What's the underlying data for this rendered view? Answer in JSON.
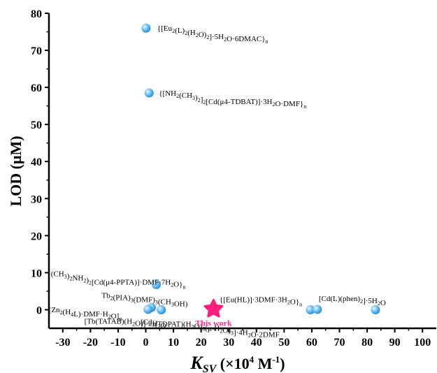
{
  "chart_data": {
    "type": "scatter",
    "xlabel": "K_SV (×10^4 M^-1)",
    "xlabel_main": "K",
    "xlabel_sub": "SV",
    "xlabel_rest": " (×10",
    "xlabel_sup1": "4",
    "xlabel_mid": " M",
    "xlabel_sup2": "-1",
    "xlabel_end": ")",
    "ylabel": "LOD (μM)",
    "xlim": [
      -35,
      105
    ],
    "ylim": [
      -5,
      80
    ],
    "xticks": [
      -30,
      -20,
      -10,
      0,
      10,
      20,
      30,
      40,
      50,
      60,
      70,
      80,
      90,
      100
    ],
    "yticks": [
      0,
      10,
      20,
      30,
      40,
      50,
      60,
      70,
      80
    ],
    "xtick_labels": [
      "-30",
      "-20",
      "-10",
      "0",
      "10",
      "20",
      "30",
      "40",
      "50",
      "60",
      "70",
      "80",
      "90",
      "100"
    ],
    "ytick_labels": [
      "0",
      "10",
      "20",
      "30",
      "40",
      "50",
      "60",
      "70",
      "80"
    ],
    "grid": false,
    "colors": {
      "point": "#5fb8f0",
      "point_light": "#d6f0ff",
      "highlight": "#ff1f7a"
    },
    "points": [
      {
        "x": 0.1,
        "y": 76.0,
        "label": "{[Eu2(L)2(H2O)2]·5H2O·6DMAC}n"
      },
      {
        "x": 1.2,
        "y": 58.5,
        "label": "{[NH2(CH3)2]2[Cd(μ4-TDBAT)]·3H2O·DMF}n"
      },
      {
        "x": 3.8,
        "y": 6.8,
        "label": "{(CH3)2NH2)2[Cd(μ4-PPTA)]·DMF·7H2O}n"
      },
      {
        "x": 2.0,
        "y": 0.6,
        "label": "Tb2(PIA)3(DMF)3(CH3OH)"
      },
      {
        "x": 0.8,
        "y": 0.1,
        "label": "[Zn2(H4L)·DMF·H2O]n"
      },
      {
        "x": 5.6,
        "y": 0.0,
        "label": "[Tb(TATAB)(H2O)]·2H2O"
      },
      {
        "x": 59.5,
        "y": 0.0,
        "label": "{[Eu(HL)]·3DMF·3H2O}n"
      },
      {
        "x": 62.0,
        "y": 0.1,
        "label": "[Cd(L)(phen)2]·5H2O"
      },
      {
        "x": 83.0,
        "y": 0.0,
        "label": "[Cd3(TDPAT)(H2O)6(μ-H2O)3]·4H2O·2DMF"
      }
    ],
    "highlight": {
      "x": 24.5,
      "y": 0.2,
      "label": "This work"
    }
  }
}
